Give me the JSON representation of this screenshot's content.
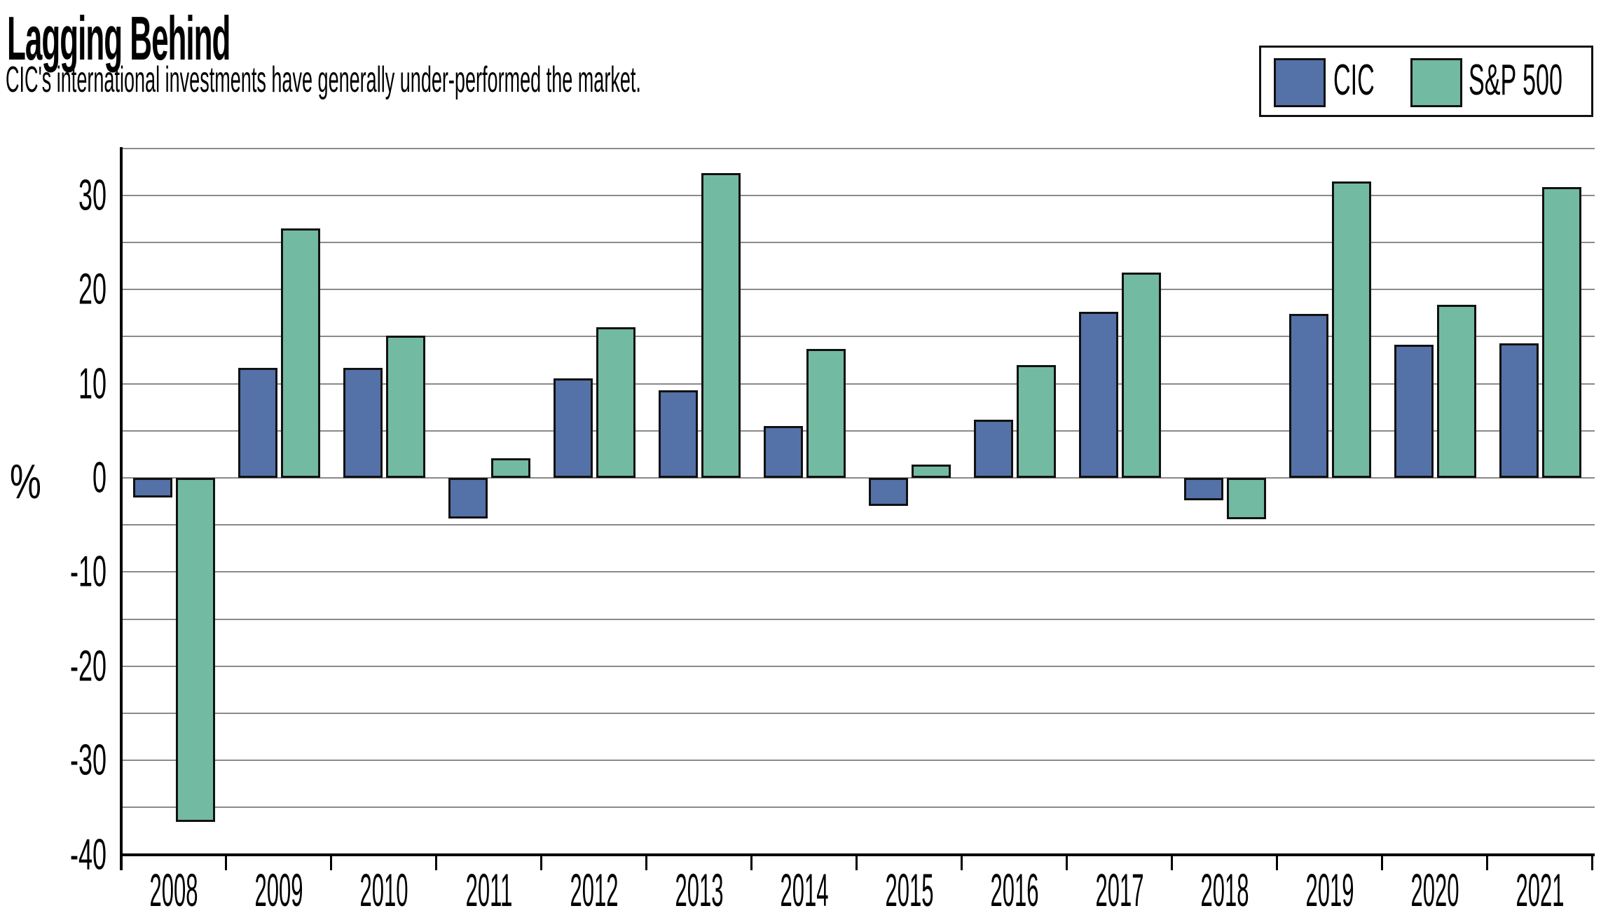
{
  "header": {
    "title": "Lagging Behind",
    "subtitle": "CIC's international investments have generally under-performed the market."
  },
  "legend": {
    "items": [
      {
        "label": "CIC",
        "color": "#5471A8"
      },
      {
        "label": "S&P 500",
        "color": "#73BAA2"
      }
    ]
  },
  "chart_data": {
    "type": "bar",
    "title": "Lagging Behind",
    "subtitle": "CIC's international investments have generally under-performed the market.",
    "xlabel": "",
    "ylabel": "%",
    "categories": [
      "2008",
      "2009",
      "2010",
      "2011",
      "2012",
      "2013",
      "2014",
      "2015",
      "2016",
      "2017",
      "2018",
      "2019",
      "2020",
      "2021"
    ],
    "series": [
      {
        "name": "CIC",
        "color": "#5471A8",
        "values": [
          -2.1,
          11.7,
          11.7,
          -4.3,
          10.6,
          9.3,
          5.5,
          -3.0,
          6.2,
          17.6,
          -2.4,
          17.4,
          14.1,
          14.3
        ]
      },
      {
        "name": "S&P 500",
        "color": "#73BAA2",
        "values": [
          -36.5,
          26.5,
          15.1,
          2.1,
          16.0,
          32.4,
          13.7,
          1.4,
          12.0,
          21.8,
          -4.4,
          31.5,
          18.4,
          30.9
        ]
      }
    ],
    "ylim": [
      -40,
      35
    ],
    "ytick_labels": [
      "30",
      "20",
      "10",
      "0",
      "-10",
      "-20",
      "-30",
      "-40"
    ],
    "ytick_values": [
      30,
      20,
      10,
      0,
      -10,
      -20,
      -30,
      -40
    ],
    "gridline_step": 5,
    "grid": true,
    "legend_position": "top-right",
    "unit": "percent annual return"
  }
}
